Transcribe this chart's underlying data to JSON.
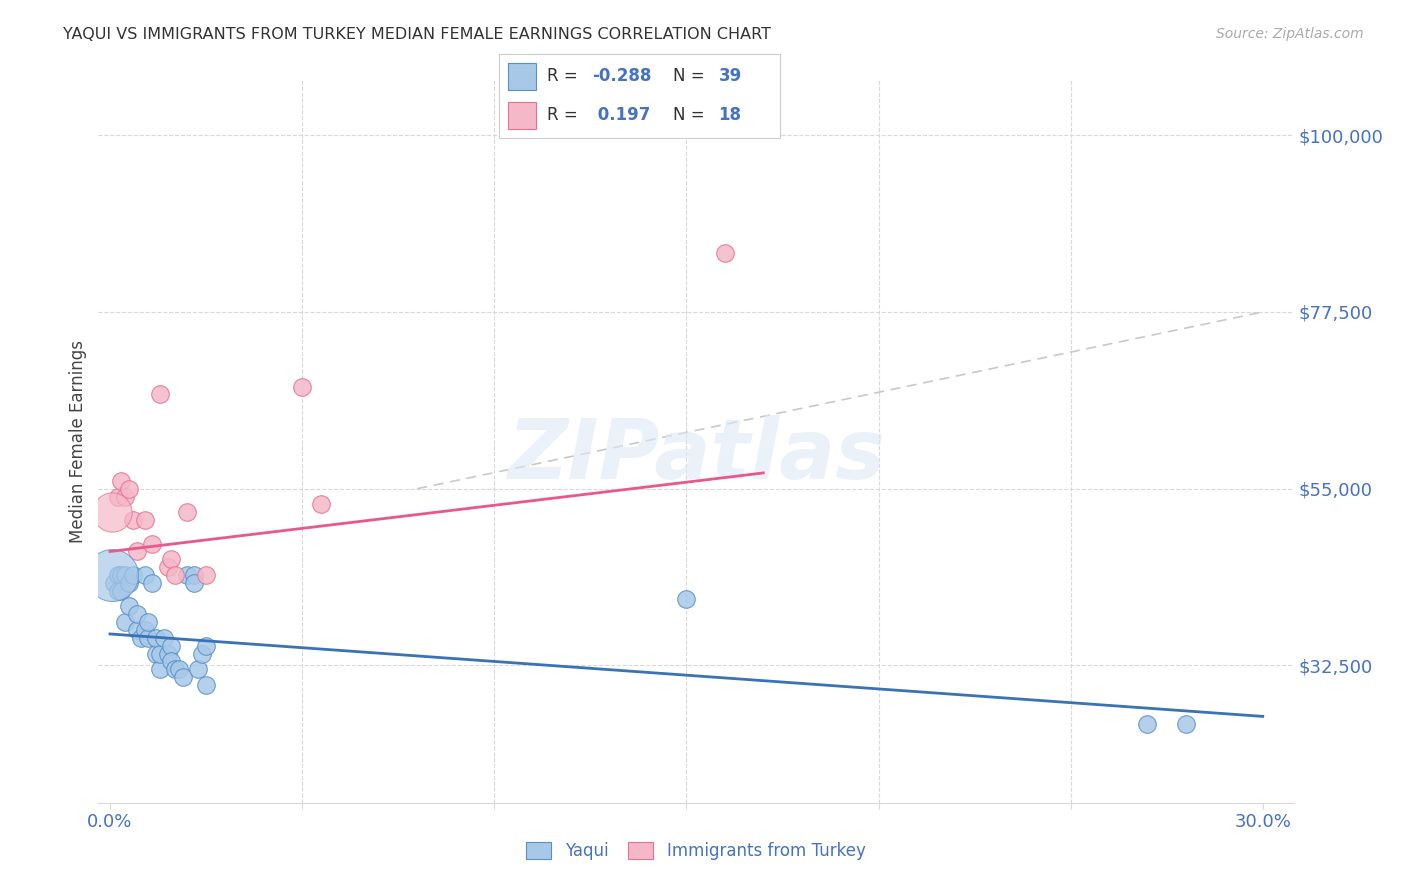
{
  "title": "YAQUI VS IMMIGRANTS FROM TURKEY MEDIAN FEMALE EARNINGS CORRELATION CHART",
  "source": "Source: ZipAtlas.com",
  "ylabel": "Median Female Earnings",
  "xlim": [
    -0.003,
    0.308
  ],
  "ylim": [
    15000,
    107000
  ],
  "xticks": [
    0.0,
    0.05,
    0.1,
    0.15,
    0.2,
    0.25,
    0.3
  ],
  "xticklabels": [
    "0.0%",
    "",
    "",
    "",
    "",
    "",
    "30.0%"
  ],
  "yticks_right": [
    32500,
    55000,
    77500,
    100000
  ],
  "ytick_labels_right": [
    "$32,500",
    "$55,000",
    "$77,500",
    "$100,000"
  ],
  "blue_color": "#a8c8e8",
  "pink_color": "#f4b8c8",
  "blue_edge_color": "#5590c8",
  "pink_edge_color": "#e87090",
  "blue_line_color": "#3872b8",
  "pink_line_color": "#e85888",
  "dashed_line_color": "#c8c8c8",
  "grid_color": "#d8d8d8",
  "R_blue": -0.288,
  "N_blue": 39,
  "R_pink": 0.197,
  "N_pink": 18,
  "legend_label_blue": "Yaqui",
  "legend_label_pink": "Immigrants from Turkey",
  "watermark": "ZIPatlas",
  "blue_line_x0": 0.0,
  "blue_line_y0": 36500,
  "blue_line_x1": 0.3,
  "blue_line_y1": 26000,
  "pink_line_x0": 0.0,
  "pink_line_y0": 47000,
  "pink_line_x1": 0.17,
  "pink_line_y1": 57000,
  "dash_line_x0": 0.08,
  "dash_line_y0": 55000,
  "dash_line_x1": 0.3,
  "dash_line_y1": 77500,
  "blue_scatter_x": [
    0.001,
    0.002,
    0.002,
    0.003,
    0.003,
    0.004,
    0.004,
    0.005,
    0.005,
    0.006,
    0.007,
    0.007,
    0.008,
    0.009,
    0.009,
    0.01,
    0.01,
    0.011,
    0.012,
    0.012,
    0.013,
    0.013,
    0.014,
    0.015,
    0.016,
    0.016,
    0.017,
    0.018,
    0.019,
    0.02,
    0.022,
    0.022,
    0.023,
    0.024,
    0.025,
    0.025,
    0.15,
    0.27,
    0.28
  ],
  "blue_scatter_y": [
    43000,
    44000,
    42000,
    44000,
    42000,
    38000,
    44000,
    40000,
    43000,
    44000,
    37000,
    39000,
    36000,
    37000,
    44000,
    36000,
    38000,
    43000,
    34000,
    36000,
    32000,
    34000,
    36000,
    34000,
    35000,
    33000,
    32000,
    32000,
    31000,
    44000,
    44000,
    43000,
    32000,
    34000,
    35000,
    30000,
    41000,
    25000,
    25000
  ],
  "blue_scatter_large_x": [
    0.0005
  ],
  "blue_scatter_large_y": [
    44000
  ],
  "pink_scatter_x": [
    0.002,
    0.003,
    0.004,
    0.005,
    0.006,
    0.007,
    0.009,
    0.011,
    0.013,
    0.015,
    0.016,
    0.017,
    0.02,
    0.025,
    0.05,
    0.055,
    0.16
  ],
  "pink_scatter_y": [
    54000,
    56000,
    54000,
    55000,
    51000,
    47000,
    51000,
    48000,
    67000,
    45000,
    46000,
    44000,
    52000,
    44000,
    68000,
    53000,
    85000
  ],
  "pink_scatter_large_x": [
    0.0005
  ],
  "pink_scatter_large_y": [
    52000
  ]
}
